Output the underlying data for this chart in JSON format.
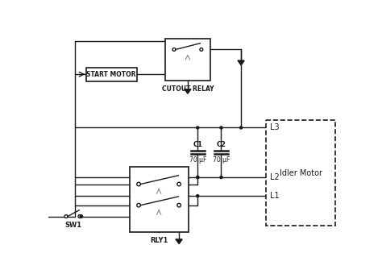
{
  "bg_color": "#ffffff",
  "line_color": "#1a1a1a",
  "labels": {
    "start_motor": "START MOTOR",
    "cutout_relay": "CUTOUT RELAY",
    "rly1": "RLY1",
    "sw1": "SW1",
    "c1": "C1",
    "c1_val": "70 μF",
    "c2": "C2",
    "c2_val": "70 μF",
    "l1": "L1",
    "l2": "L2",
    "l3": "L3",
    "idler": "Idler Motor"
  }
}
